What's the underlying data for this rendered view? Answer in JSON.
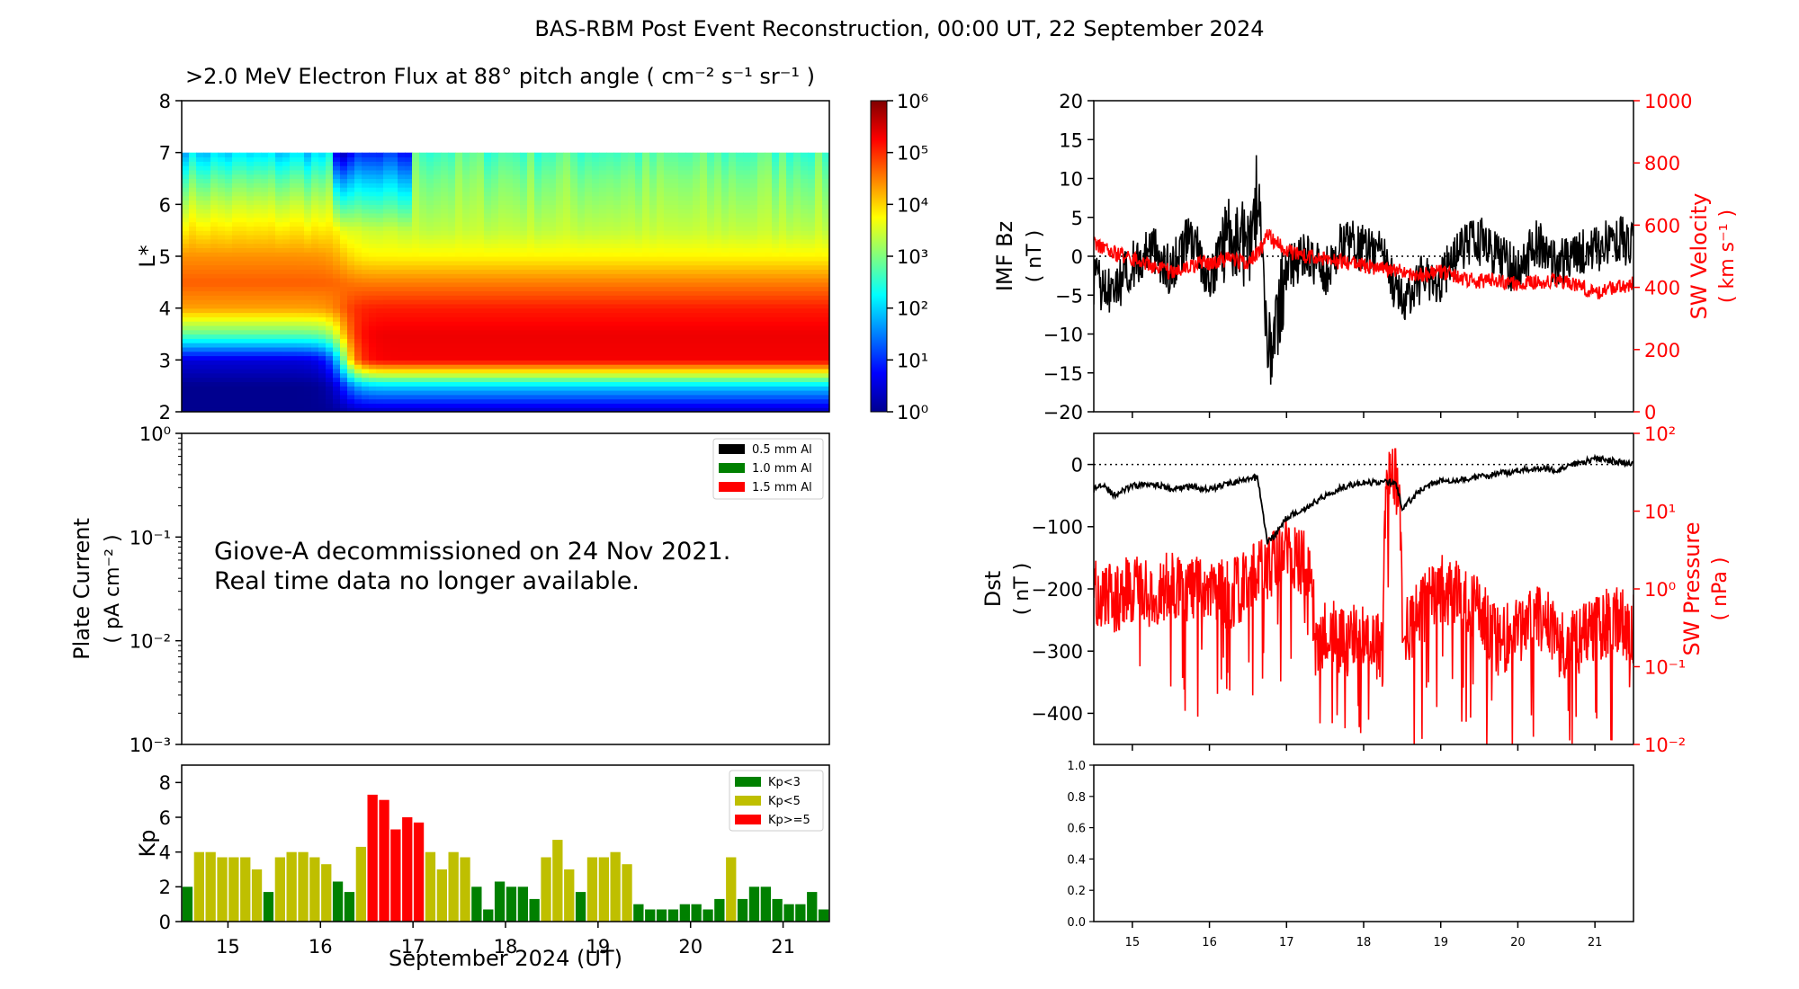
{
  "suptitle": "BAS-RBM Post Event Reconstruction, 00:00 UT, 22 September 2024",
  "colors": {
    "black": "#000000",
    "red": "#ff0000",
    "green": "#008000",
    "olive": "#bfbf00"
  },
  "chart_data": [
    {
      "id": "flux",
      "type": "heatmap",
      "title": ">2.0 MeV Electron Flux at 88° pitch angle ( cm⁻² s⁻¹ sr⁻¹ )",
      "ylabel": "L*",
      "ylim": [
        2,
        8
      ],
      "yticks": [
        "2",
        "3",
        "4",
        "5",
        "6",
        "7",
        "8"
      ],
      "xlim": [
        "2024-09-14T12:00",
        "2024-09-21T12:00"
      ],
      "colorbar": {
        "scale": "log",
        "range": [
          1,
          1000000
        ],
        "colormap": "jet",
        "ticks": [
          "10⁰",
          "10¹",
          "10²",
          "10³",
          "10⁴",
          "10⁵",
          "10⁶"
        ]
      },
      "field_lmax": 7,
      "description_points": {
        "L": [
          2.0,
          2.5,
          3.0,
          3.5,
          4.0,
          4.5,
          5.0,
          5.5,
          6.0,
          6.5,
          7.0
        ],
        "log10_flux_pre_storm": [
          0.0,
          0.0,
          0.5,
          2.8,
          4.3,
          4.7,
          4.4,
          3.9,
          3.4,
          2.8,
          2.0
        ],
        "log10_flux_post_storm": [
          0.3,
          2.0,
          5.3,
          5.35,
          5.1,
          4.5,
          3.8,
          3.4,
          3.2,
          3.0,
          2.7
        ]
      }
    },
    {
      "id": "plate",
      "type": "line",
      "ylabel": "Plate Current",
      "ylabel_units": "( pA cm⁻² )",
      "yscale": "log",
      "ylim": [
        0.001,
        1
      ],
      "yticks": [
        "10⁻³",
        "10⁻²",
        "10⁻¹",
        "10⁰"
      ],
      "annotation": [
        "Giove-A decommissioned on 24 Nov 2021.",
        "Real time data no longer available."
      ],
      "legend": {
        "placement": "upper right",
        "entries": [
          {
            "label": "0.5 mm Al",
            "color": "#000000"
          },
          {
            "label": "1.0 mm Al",
            "color": "#008000"
          },
          {
            "label": "1.5 mm Al",
            "color": "#ff0000"
          }
        ]
      },
      "series": []
    },
    {
      "id": "kp",
      "type": "bar",
      "ylabel": "Kp",
      "ylim": [
        0,
        9
      ],
      "yticks": [
        "0",
        "2",
        "4",
        "6",
        "8"
      ],
      "xlabel": "September 2024 (UT)",
      "xticks": [
        "15",
        "16",
        "17",
        "18",
        "19",
        "20",
        "21"
      ],
      "bar_hours": 3,
      "start": "2024-09-14T12:00",
      "legend": {
        "placement": "upper right",
        "entries": [
          {
            "label": "Kp<3",
            "color": "#008000"
          },
          {
            "label": "Kp<5",
            "color": "#bfbf00"
          },
          {
            "label": "Kp>=5",
            "color": "#ff0000"
          }
        ]
      },
      "values": [
        2.0,
        4.0,
        4.0,
        3.7,
        3.7,
        3.7,
        3.0,
        1.7,
        3.7,
        4.0,
        4.0,
        3.7,
        3.3,
        2.3,
        1.7,
        4.3,
        7.3,
        7.0,
        5.3,
        6.0,
        5.7,
        4.0,
        3.0,
        4.0,
        3.7,
        2.0,
        0.7,
        2.3,
        2.0,
        2.0,
        1.3,
        3.7,
        4.7,
        3.0,
        1.7,
        3.7,
        3.7,
        4.0,
        3.3,
        1.0,
        0.7,
        0.7,
        0.7,
        1.0,
        1.0,
        0.7,
        1.3,
        3.7,
        1.3,
        2.0,
        2.0,
        1.3,
        1.0,
        1.0,
        1.7,
        0.7
      ]
    },
    {
      "id": "imf",
      "type": "line",
      "ylabel": "IMF Bz",
      "ylabel_units": "( nT )",
      "ylim": [
        -20,
        20
      ],
      "yticks": [
        "−20",
        "−15",
        "−10",
        "−5",
        "0",
        "5",
        "10",
        "15",
        "20"
      ],
      "ylabel2": "SW Velocity",
      "ylabel2_units": "( km s⁻¹ )",
      "ylim2": [
        0,
        1000
      ],
      "yticks2": [
        "0",
        "200",
        "400",
        "600",
        "800",
        "1000"
      ],
      "hline": 0,
      "series": [
        {
          "color": "#000000",
          "x": [
            "2024-09-14T12:00",
            "2024-09-14T18:00",
            "2024-09-15T00:00",
            "2024-09-15T06:00",
            "2024-09-15T12:00",
            "2024-09-15T18:00",
            "2024-09-16T00:00",
            "2024-09-16T06:00",
            "2024-09-16T12:00",
            "2024-09-16T16:00",
            "2024-09-16T18:00",
            "2024-09-16T20:00",
            "2024-09-17T00:00",
            "2024-09-17T06:00",
            "2024-09-17T12:00",
            "2024-09-17T18:00",
            "2024-09-18T00:00",
            "2024-09-18T06:00",
            "2024-09-18T12:00",
            "2024-09-18T18:00",
            "2024-09-19T00:00",
            "2024-09-19T06:00",
            "2024-09-19T12:00",
            "2024-09-19T18:00",
            "2024-09-20T00:00",
            "2024-09-20T06:00",
            "2024-09-20T12:00",
            "2024-09-20T18:00",
            "2024-09-21T00:00",
            "2024-09-21T06:00",
            "2024-09-21T12:00"
          ],
          "y": [
            -3,
            -5,
            -1,
            1,
            -2,
            3,
            -3,
            3,
            1,
            8,
            -14,
            -10,
            -2,
            0,
            -2,
            2,
            1,
            0,
            -6,
            -3,
            -3,
            1,
            2,
            0,
            -2,
            2,
            -1,
            0,
            1,
            2,
            2
          ]
        },
        {
          "color": "#ff0000",
          "axis": "right",
          "x": [
            "2024-09-14T12:00",
            "2024-09-14T18:00",
            "2024-09-15T00:00",
            "2024-09-15T06:00",
            "2024-09-15T12:00",
            "2024-09-15T18:00",
            "2024-09-16T00:00",
            "2024-09-16T06:00",
            "2024-09-16T12:00",
            "2024-09-16T16:00",
            "2024-09-16T18:00",
            "2024-09-16T20:00",
            "2024-09-17T00:00",
            "2024-09-17T06:00",
            "2024-09-17T12:00",
            "2024-09-17T18:00",
            "2024-09-18T00:00",
            "2024-09-18T06:00",
            "2024-09-18T12:00",
            "2024-09-18T18:00",
            "2024-09-19T00:00",
            "2024-09-19T06:00",
            "2024-09-19T12:00",
            "2024-09-19T18:00",
            "2024-09-20T00:00",
            "2024-09-20T06:00",
            "2024-09-20T12:00",
            "2024-09-20T18:00",
            "2024-09-21T00:00",
            "2024-09-21T06:00",
            "2024-09-21T12:00"
          ],
          "y": [
            540,
            510,
            490,
            470,
            450,
            470,
            480,
            490,
            480,
            520,
            570,
            550,
            520,
            500,
            490,
            480,
            470,
            460,
            450,
            440,
            450,
            430,
            420,
            420,
            410,
            420,
            420,
            410,
            380,
            400,
            410
          ]
        }
      ]
    },
    {
      "id": "dst",
      "type": "line",
      "ylabel": "Dst",
      "ylabel_units": "( nT )",
      "ylim": [
        -450,
        50
      ],
      "yticks": [
        "−400",
        "−300",
        "−200",
        "−100",
        "0"
      ],
      "ylabel2": "SW Pressure",
      "ylabel2_units": "( nPa )",
      "yscale2": "log",
      "ylim2": [
        0.01,
        100
      ],
      "yticks2": [
        "10⁻²",
        "10⁻¹",
        "10⁰",
        "10¹",
        "10²"
      ],
      "hline": 0,
      "series": [
        {
          "color": "#000000",
          "x": [
            "2024-09-14T12:00",
            "2024-09-14T15:00",
            "2024-09-14T18:00",
            "2024-09-15T00:00",
            "2024-09-15T06:00",
            "2024-09-15T12:00",
            "2024-09-15T18:00",
            "2024-09-16T00:00",
            "2024-09-16T06:00",
            "2024-09-16T12:00",
            "2024-09-16T15:00",
            "2024-09-16T18:00",
            "2024-09-16T21:00",
            "2024-09-17T00:00",
            "2024-09-17T06:00",
            "2024-09-17T12:00",
            "2024-09-17T18:00",
            "2024-09-18T00:00",
            "2024-09-18T06:00",
            "2024-09-18T10:00",
            "2024-09-18T12:00",
            "2024-09-18T18:00",
            "2024-09-19T00:00",
            "2024-09-19T06:00",
            "2024-09-19T12:00",
            "2024-09-19T18:00",
            "2024-09-20T00:00",
            "2024-09-20T06:00",
            "2024-09-20T12:00",
            "2024-09-20T18:00",
            "2024-09-21T00:00",
            "2024-09-21T06:00",
            "2024-09-21T12:00"
          ],
          "y": [
            -40,
            -30,
            -50,
            -35,
            -30,
            -40,
            -35,
            -40,
            -30,
            -25,
            -20,
            -125,
            -110,
            -85,
            -70,
            -50,
            -35,
            -30,
            -28,
            -30,
            -70,
            -40,
            -25,
            -25,
            -20,
            -15,
            -10,
            -5,
            -10,
            0,
            10,
            5,
            0
          ]
        },
        {
          "color": "#ff0000",
          "axis": "right",
          "x": [
            "2024-09-14T12:00",
            "2024-09-14T18:00",
            "2024-09-15T00:00",
            "2024-09-15T06:00",
            "2024-09-15T12:00",
            "2024-09-15T18:00",
            "2024-09-16T00:00",
            "2024-09-16T06:00",
            "2024-09-16T12:00",
            "2024-09-16T18:00",
            "2024-09-17T00:00",
            "2024-09-17T06:00",
            "2024-09-17T09:00",
            "2024-09-17T12:00",
            "2024-09-17T18:00",
            "2024-09-18T00:00",
            "2024-09-18T06:00",
            "2024-09-18T09:00",
            "2024-09-18T12:00",
            "2024-09-18T18:00",
            "2024-09-19T00:00",
            "2024-09-19T06:00",
            "2024-09-19T12:00",
            "2024-09-19T18:00",
            "2024-09-20T00:00",
            "2024-09-20T06:00",
            "2024-09-20T12:00",
            "2024-09-20T18:00",
            "2024-09-21T00:00",
            "2024-09-21T06:00",
            "2024-09-21T12:00"
          ],
          "y": [
            1.0,
            0.7,
            1.0,
            0.8,
            1.2,
            0.9,
            1.0,
            0.8,
            1.2,
            2.0,
            3.0,
            2.0,
            0.15,
            0.3,
            0.2,
            0.25,
            0.15,
            40,
            0.2,
            0.5,
            1.0,
            0.8,
            0.5,
            0.2,
            0.3,
            0.5,
            0.2,
            0.2,
            0.3,
            0.4,
            0.3
          ]
        }
      ]
    },
    {
      "id": "empty",
      "type": "line",
      "ylim": [
        0,
        1
      ],
      "yticks": [
        "0.0",
        "0.2",
        "0.4",
        "0.6",
        "0.8",
        "1.0"
      ],
      "xticks": [
        "15",
        "16",
        "17",
        "18",
        "19",
        "20",
        "21"
      ],
      "series": []
    }
  ]
}
